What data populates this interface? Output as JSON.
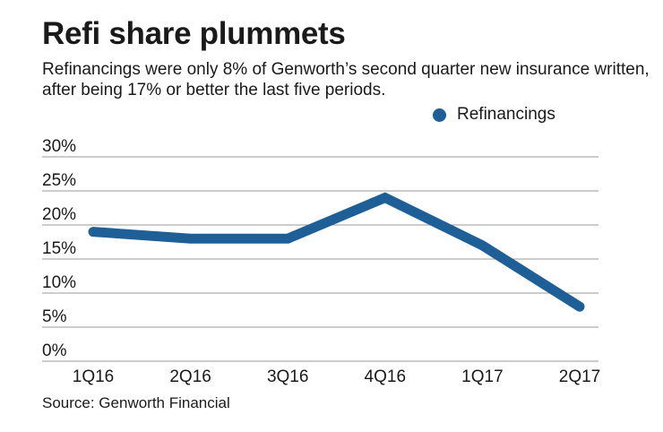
{
  "header": {
    "title": "Refi share plummets",
    "subtitle": "Refinancings were only 8% of Genworth’s second quarter new insurance written, after being 17% or better the last five periods."
  },
  "footer": {
    "source": "Source: Genworth Financial"
  },
  "colors": {
    "series": "#1f5f98",
    "grid": "#9a9a9a",
    "text": "#1a1a1a"
  },
  "chart_data": {
    "type": "line",
    "title": "Refi share plummets",
    "xlabel": "",
    "ylabel": "",
    "categories": [
      "1Q16",
      "2Q16",
      "3Q16",
      "4Q16",
      "1Q17",
      "2Q17"
    ],
    "series": [
      {
        "name": "Refinancings",
        "values": [
          19,
          18,
          18,
          24,
          17,
          8
        ]
      }
    ],
    "ylim": [
      0,
      30
    ],
    "yticks": [
      0,
      5,
      10,
      15,
      20,
      25,
      30
    ],
    "ytick_labels": [
      "0%",
      "5%",
      "10%",
      "15%",
      "20%",
      "25%",
      "30%"
    ],
    "grid": true,
    "legend": "top-right"
  }
}
